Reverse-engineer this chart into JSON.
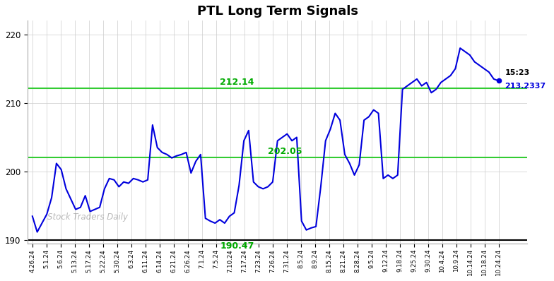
{
  "title": "PTL Long Term Signals",
  "watermark": "Stock Traders Daily",
  "line_color": "#0000dd",
  "line_width": 1.5,
  "background_color": "#ffffff",
  "grid_color": "#cccccc",
  "hline_black": {
    "y": 190.0,
    "color": "#000000",
    "lw": 1.5
  },
  "hline_green1": {
    "y": 202.05,
    "color": "#33cc33",
    "lw": 1.5
  },
  "hline_green2": {
    "y": 212.14,
    "color": "#33cc33",
    "lw": 1.5
  },
  "ann_color": "#00aa00",
  "last_label_time": "15:23",
  "last_label_price": "213.2337",
  "last_dot_color": "#0000dd",
  "ylim": [
    189.5,
    222.0
  ],
  "yticks": [
    190,
    200,
    210,
    220
  ],
  "x_labels": [
    "4.26.24",
    "5.1.24",
    "5.6.24",
    "5.13.24",
    "5.17.24",
    "5.22.24",
    "5.30.24",
    "6.3.24",
    "6.11.24",
    "6.14.24",
    "6.21.24",
    "6.26.24",
    "7.1.24",
    "7.5.24",
    "7.10.24",
    "7.17.24",
    "7.23.24",
    "7.26.24",
    "7.31.24",
    "8.5.24",
    "8.9.24",
    "8.15.24",
    "8.21.24",
    "8.28.24",
    "9.5.24",
    "9.12.24",
    "9.18.24",
    "9.25.24",
    "9.30.24",
    "10.4.24",
    "10.9.24",
    "10.14.24",
    "10.18.24",
    "10.24.24"
  ],
  "prices": [
    193.5,
    191.2,
    192.5,
    193.8,
    196.2,
    201.2,
    200.3,
    197.5,
    196.0,
    194.5,
    194.8,
    196.5,
    194.2,
    194.5,
    194.8,
    197.5,
    199.0,
    198.8,
    197.8,
    198.5,
    198.3,
    199.0,
    198.8,
    198.5,
    198.8,
    206.8,
    203.5,
    202.8,
    202.5,
    202.0,
    202.3,
    202.5,
    202.8,
    199.8,
    201.5,
    202.5,
    193.2,
    192.8,
    192.5,
    193.0,
    192.5,
    193.5,
    194.0,
    198.0,
    204.5,
    206.0,
    198.5,
    197.8,
    197.5,
    197.8,
    198.5,
    204.5,
    205.0,
    205.5,
    204.5,
    205.0,
    192.8,
    191.5,
    191.8,
    192.0,
    197.8,
    204.5,
    206.2,
    208.5,
    207.5,
    202.5,
    201.2,
    199.5,
    201.0,
    207.5,
    208.0,
    209.0,
    208.5,
    199.0,
    199.5,
    199.0,
    199.5,
    212.0,
    212.5,
    213.0,
    213.5,
    212.5,
    213.0,
    211.5,
    212.0,
    213.0,
    213.5,
    214.0,
    215.0,
    218.0,
    217.5,
    217.0,
    216.0,
    215.5,
    215.0,
    214.5,
    213.5,
    213.2337
  ]
}
